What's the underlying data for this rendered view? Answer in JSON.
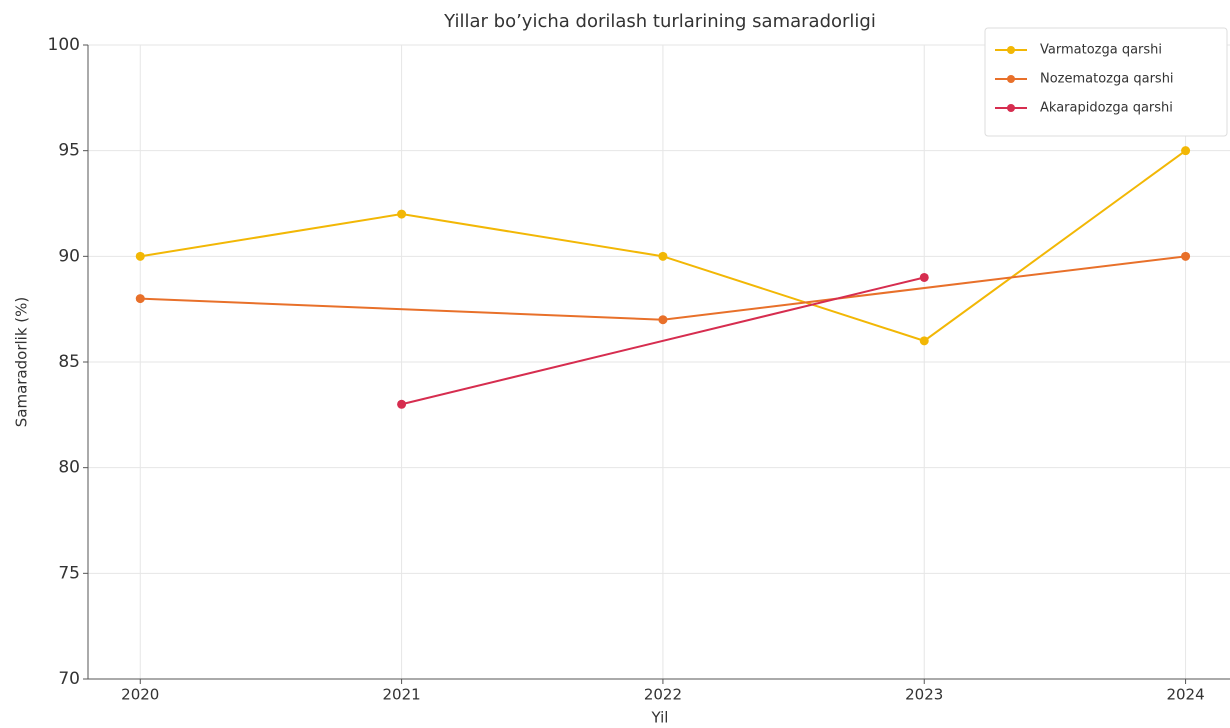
{
  "chart_data": {
    "type": "line",
    "title": "Yillar bo’yicha dorilash turlarining samaradorligi",
    "xlabel": "Yil",
    "ylabel": "Samaradorlik (%)",
    "xlim": [
      2019.8,
      2024.17
    ],
    "xticks": [
      2020,
      2021,
      2022,
      2023,
      2024
    ],
    "ylim": [
      70,
      100
    ],
    "yticks": [
      70,
      75,
      80,
      85,
      90,
      95,
      100
    ],
    "grid": true,
    "legend": "upper right",
    "series": [
      {
        "name": "Varmatozga qarshi",
        "color": "#f2b705",
        "x": [
          2020,
          2021,
          2022,
          2023,
          2024
        ],
        "values": [
          90,
          92,
          90,
          86,
          95
        ]
      },
      {
        "name": "Nozematozga qarshi",
        "color": "#e8702a",
        "x": [
          2020,
          2022,
          2024
        ],
        "values": [
          88,
          87,
          90
        ]
      },
      {
        "name": "Akarapidozga qarshi",
        "color": "#d62d4f",
        "x": [
          2021,
          2023
        ],
        "values": [
          83,
          89
        ]
      }
    ]
  }
}
